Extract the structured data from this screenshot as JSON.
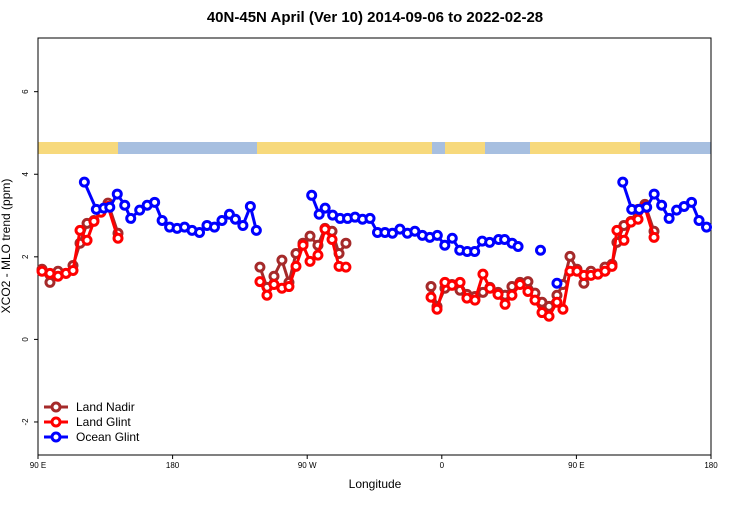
{
  "chart_data": {
    "type": "line",
    "title": "40N-45N April (Ver 10)   2014-09-06 to 2022-02-28",
    "xlabel": "Longitude",
    "ylabel": "XCO2 - MLO trend (ppm)",
    "xlim": [
      90,
      540
    ],
    "ylim": [
      -2.8,
      7.3
    ],
    "xticks": [
      {
        "value": 90,
        "label": "90 E"
      },
      {
        "value": 180,
        "label": "180"
      },
      {
        "value": 270,
        "label": "90 W"
      },
      {
        "value": 360,
        "label": "0"
      },
      {
        "value": 450,
        "label": "90 E"
      },
      {
        "value": 540,
        "label": "180"
      }
    ],
    "yticks": [
      -2,
      0,
      2,
      4,
      6
    ],
    "legend": "bottom-left",
    "series": [
      {
        "name": "Land Nadir",
        "color": "#a52a2a",
        "x": [
          92.7,
          98,
          103.4,
          108.7,
          113.4,
          118.1,
          122.8,
          127.4,
          136.8,
          143.5,
          null,
          238.4,
          243.1,
          247.8,
          253.1,
          257.8,
          262.5,
          267.2,
          271.9,
          277.2,
          281.9,
          286.6,
          291.3,
          295.9,
          null,
          352.8,
          356.8,
          362.1,
          366.8,
          372.2,
          376.8,
          382.2,
          387.5,
          392.2,
          397.6,
          402.3,
          406.9,
          412.3,
          417.6,
          422.3,
          427,
          431.7,
          437,
          441,
          445.7,
          450.4,
          455,
          459.7,
          464.4,
          469.1,
          473.8,
          477.1,
          481.8,
          486.5,
          491.2,
          495.8,
          501.9
        ],
        "values": [
          1.7,
          1.38,
          1.65,
          1.6,
          1.79,
          2.33,
          2.81,
          2.88,
          3.3,
          2.57,
          null,
          1.75,
          1.26,
          1.53,
          1.92,
          1.38,
          2.08,
          2.33,
          2.5,
          2.28,
          2.69,
          2.62,
          2.08,
          2.33,
          null,
          1.28,
          0.8,
          1.24,
          1.33,
          1.19,
          1.09,
          1.04,
          1.14,
          1.26,
          1.14,
          1.07,
          1.28,
          1.38,
          1.4,
          1.12,
          0.9,
          0.8,
          1.07,
          1.33,
          2.01,
          1.7,
          1.36,
          1.65,
          1.58,
          1.75,
          1.82,
          2.35,
          2.76,
          2.86,
          3.15,
          3.27,
          2.62
        ]
      },
      {
        "name": "Land Glint",
        "color": "#ff0000",
        "x": [
          92.7,
          98,
          103.4,
          108.7,
          113.4,
          118.1,
          122.8,
          127.4,
          132.1,
          136.8,
          143.5,
          null,
          238.4,
          243.1,
          247.8,
          253.1,
          257.8,
          262.5,
          267.2,
          271.9,
          277.2,
          281.9,
          286.6,
          291.3,
          295.9,
          null,
          352.8,
          356.8,
          362.1,
          366.8,
          372.2,
          376.8,
          382.2,
          387.5,
          392.2,
          397.6,
          402.3,
          406.9,
          412.3,
          417.6,
          422.3,
          427,
          431.7,
          437,
          441,
          445.7,
          450.4,
          455,
          459.7,
          464.4,
          469.1,
          473.8,
          477.1,
          481.8,
          486.5,
          491.2,
          495.8,
          501.9
        ],
        "values": [
          1.65,
          1.6,
          1.53,
          1.6,
          1.67,
          2.64,
          2.4,
          2.86,
          3.08,
          3.22,
          2.45,
          null,
          1.4,
          1.07,
          1.33,
          1.24,
          1.28,
          1.77,
          2.28,
          1.89,
          2.04,
          2.67,
          2.42,
          1.77,
          1.75,
          null,
          1.02,
          0.73,
          1.38,
          1.31,
          1.38,
          1.0,
          0.95,
          1.58,
          1.24,
          1.09,
          0.85,
          1.07,
          1.33,
          1.16,
          0.95,
          0.65,
          0.56,
          0.9,
          0.73,
          1.65,
          1.65,
          1.55,
          1.55,
          1.58,
          1.65,
          1.77,
          2.64,
          2.4,
          2.84,
          2.91,
          3.2,
          2.47
        ]
      },
      {
        "name": "Ocean Glint",
        "color": "#0000ff",
        "x": [
          121,
          129,
          134,
          138,
          143,
          148,
          152,
          158,
          163,
          168,
          173,
          178,
          183,
          188,
          193,
          198,
          203,
          208,
          213,
          218,
          222,
          227,
          232,
          236,
          null,
          273,
          278,
          282,
          287,
          292,
          297,
          302,
          307,
          312,
          317,
          322,
          327,
          332,
          337,
          342,
          347,
          352,
          357,
          362,
          367,
          372,
          377,
          382,
          387,
          392,
          398,
          402,
          407,
          411,
          null,
          426,
          null,
          437,
          null,
          481,
          487,
          492,
          497,
          502,
          507,
          512,
          517,
          522,
          527,
          532,
          537
        ],
        "values": [
          3.81,
          3.15,
          3.18,
          3.2,
          3.52,
          3.25,
          2.93,
          3.13,
          3.25,
          3.32,
          2.88,
          2.72,
          2.69,
          2.72,
          2.64,
          2.59,
          2.76,
          2.72,
          2.88,
          3.03,
          2.91,
          2.76,
          3.22,
          2.64,
          null,
          3.49,
          3.03,
          3.18,
          3.01,
          2.93,
          2.93,
          2.96,
          2.91,
          2.93,
          2.59,
          2.59,
          2.57,
          2.67,
          2.57,
          2.62,
          2.52,
          2.47,
          2.52,
          2.28,
          2.45,
          2.16,
          2.13,
          2.13,
          2.38,
          2.35,
          2.42,
          2.42,
          2.33,
          2.25,
          null,
          2.16,
          null,
          1.36,
          null,
          3.81,
          3.15,
          3.15,
          3.2,
          3.52,
          3.25,
          2.93,
          3.13,
          3.22,
          3.32,
          2.88,
          2.72
        ]
      }
    ]
  }
}
